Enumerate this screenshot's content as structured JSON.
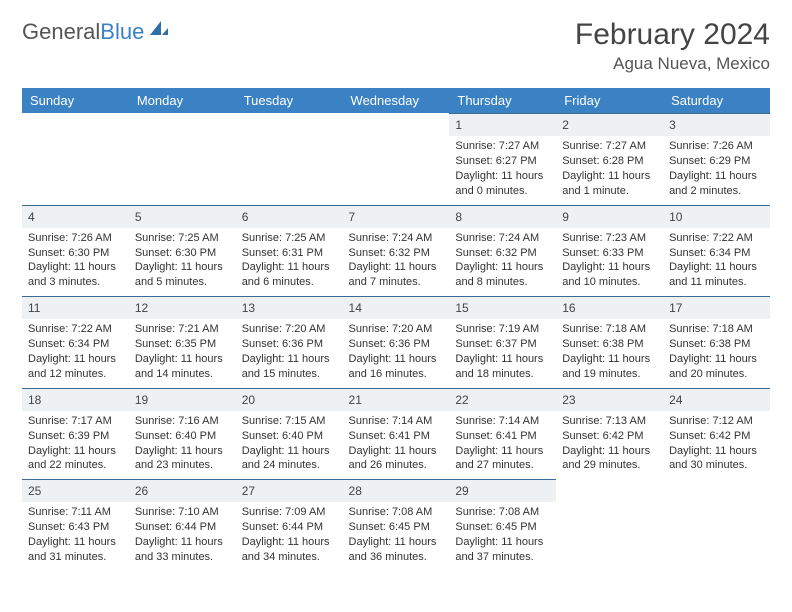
{
  "branding": {
    "logo_word1": "General",
    "logo_word2": "Blue",
    "logo_color_gray": "#6b6b6b",
    "logo_color_blue": "#3b82c4"
  },
  "header": {
    "month_title": "February 2024",
    "location": "Agua Nueva, Mexico"
  },
  "styling": {
    "header_bg": "#3b82c4",
    "header_fg": "#ffffff",
    "daynum_bg": "#eef1f3",
    "daynum_border": "#3b6a94",
    "body_bg": "#ffffff",
    "text_color": "#333333",
    "font_family": "Arial",
    "title_fontsize": 30,
    "location_fontsize": 17,
    "weekday_fontsize": 13,
    "cell_fontsize": 11
  },
  "weekdays": [
    "Sunday",
    "Monday",
    "Tuesday",
    "Wednesday",
    "Thursday",
    "Friday",
    "Saturday"
  ],
  "weeks": [
    [
      null,
      null,
      null,
      null,
      {
        "n": "1",
        "sr": "Sunrise: 7:27 AM",
        "ss": "Sunset: 6:27 PM",
        "dl": "Daylight: 11 hours and 0 minutes."
      },
      {
        "n": "2",
        "sr": "Sunrise: 7:27 AM",
        "ss": "Sunset: 6:28 PM",
        "dl": "Daylight: 11 hours and 1 minute."
      },
      {
        "n": "3",
        "sr": "Sunrise: 7:26 AM",
        "ss": "Sunset: 6:29 PM",
        "dl": "Daylight: 11 hours and 2 minutes."
      }
    ],
    [
      {
        "n": "4",
        "sr": "Sunrise: 7:26 AM",
        "ss": "Sunset: 6:30 PM",
        "dl": "Daylight: 11 hours and 3 minutes."
      },
      {
        "n": "5",
        "sr": "Sunrise: 7:25 AM",
        "ss": "Sunset: 6:30 PM",
        "dl": "Daylight: 11 hours and 5 minutes."
      },
      {
        "n": "6",
        "sr": "Sunrise: 7:25 AM",
        "ss": "Sunset: 6:31 PM",
        "dl": "Daylight: 11 hours and 6 minutes."
      },
      {
        "n": "7",
        "sr": "Sunrise: 7:24 AM",
        "ss": "Sunset: 6:32 PM",
        "dl": "Daylight: 11 hours and 7 minutes."
      },
      {
        "n": "8",
        "sr": "Sunrise: 7:24 AM",
        "ss": "Sunset: 6:32 PM",
        "dl": "Daylight: 11 hours and 8 minutes."
      },
      {
        "n": "9",
        "sr": "Sunrise: 7:23 AM",
        "ss": "Sunset: 6:33 PM",
        "dl": "Daylight: 11 hours and 10 minutes."
      },
      {
        "n": "10",
        "sr": "Sunrise: 7:22 AM",
        "ss": "Sunset: 6:34 PM",
        "dl": "Daylight: 11 hours and 11 minutes."
      }
    ],
    [
      {
        "n": "11",
        "sr": "Sunrise: 7:22 AM",
        "ss": "Sunset: 6:34 PM",
        "dl": "Daylight: 11 hours and 12 minutes."
      },
      {
        "n": "12",
        "sr": "Sunrise: 7:21 AM",
        "ss": "Sunset: 6:35 PM",
        "dl": "Daylight: 11 hours and 14 minutes."
      },
      {
        "n": "13",
        "sr": "Sunrise: 7:20 AM",
        "ss": "Sunset: 6:36 PM",
        "dl": "Daylight: 11 hours and 15 minutes."
      },
      {
        "n": "14",
        "sr": "Sunrise: 7:20 AM",
        "ss": "Sunset: 6:36 PM",
        "dl": "Daylight: 11 hours and 16 minutes."
      },
      {
        "n": "15",
        "sr": "Sunrise: 7:19 AM",
        "ss": "Sunset: 6:37 PM",
        "dl": "Daylight: 11 hours and 18 minutes."
      },
      {
        "n": "16",
        "sr": "Sunrise: 7:18 AM",
        "ss": "Sunset: 6:38 PM",
        "dl": "Daylight: 11 hours and 19 minutes."
      },
      {
        "n": "17",
        "sr": "Sunrise: 7:18 AM",
        "ss": "Sunset: 6:38 PM",
        "dl": "Daylight: 11 hours and 20 minutes."
      }
    ],
    [
      {
        "n": "18",
        "sr": "Sunrise: 7:17 AM",
        "ss": "Sunset: 6:39 PM",
        "dl": "Daylight: 11 hours and 22 minutes."
      },
      {
        "n": "19",
        "sr": "Sunrise: 7:16 AM",
        "ss": "Sunset: 6:40 PM",
        "dl": "Daylight: 11 hours and 23 minutes."
      },
      {
        "n": "20",
        "sr": "Sunrise: 7:15 AM",
        "ss": "Sunset: 6:40 PM",
        "dl": "Daylight: 11 hours and 24 minutes."
      },
      {
        "n": "21",
        "sr": "Sunrise: 7:14 AM",
        "ss": "Sunset: 6:41 PM",
        "dl": "Daylight: 11 hours and 26 minutes."
      },
      {
        "n": "22",
        "sr": "Sunrise: 7:14 AM",
        "ss": "Sunset: 6:41 PM",
        "dl": "Daylight: 11 hours and 27 minutes."
      },
      {
        "n": "23",
        "sr": "Sunrise: 7:13 AM",
        "ss": "Sunset: 6:42 PM",
        "dl": "Daylight: 11 hours and 29 minutes."
      },
      {
        "n": "24",
        "sr": "Sunrise: 7:12 AM",
        "ss": "Sunset: 6:42 PM",
        "dl": "Daylight: 11 hours and 30 minutes."
      }
    ],
    [
      {
        "n": "25",
        "sr": "Sunrise: 7:11 AM",
        "ss": "Sunset: 6:43 PM",
        "dl": "Daylight: 11 hours and 31 minutes."
      },
      {
        "n": "26",
        "sr": "Sunrise: 7:10 AM",
        "ss": "Sunset: 6:44 PM",
        "dl": "Daylight: 11 hours and 33 minutes."
      },
      {
        "n": "27",
        "sr": "Sunrise: 7:09 AM",
        "ss": "Sunset: 6:44 PM",
        "dl": "Daylight: 11 hours and 34 minutes."
      },
      {
        "n": "28",
        "sr": "Sunrise: 7:08 AM",
        "ss": "Sunset: 6:45 PM",
        "dl": "Daylight: 11 hours and 36 minutes."
      },
      {
        "n": "29",
        "sr": "Sunrise: 7:08 AM",
        "ss": "Sunset: 6:45 PM",
        "dl": "Daylight: 11 hours and 37 minutes."
      },
      null,
      null
    ]
  ]
}
